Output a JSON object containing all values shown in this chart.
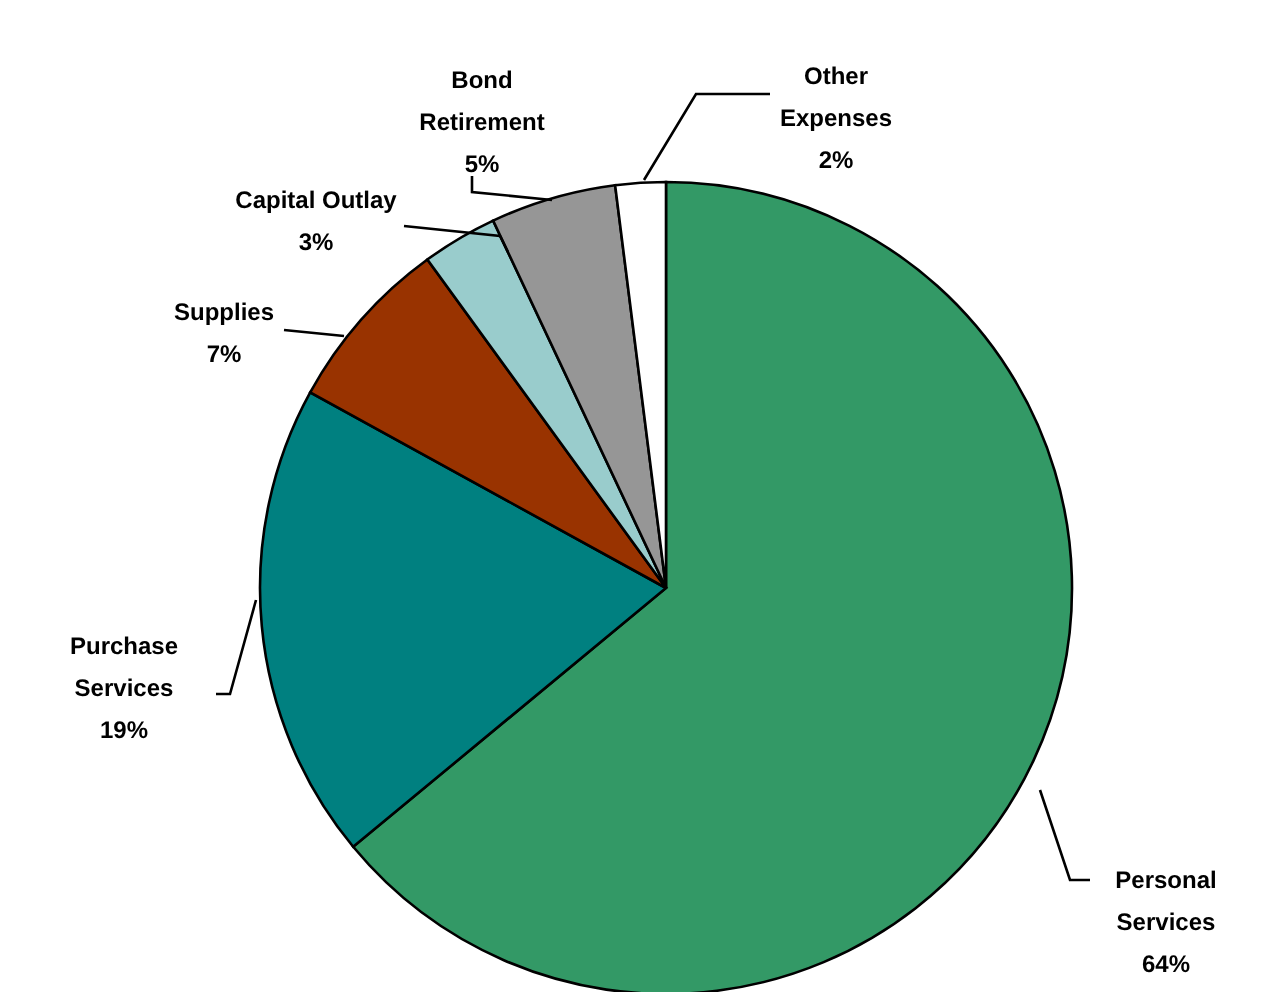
{
  "chart_data": {
    "type": "pie",
    "categories": [
      "Personal Services",
      "Purchase Services",
      "Supplies",
      "Capital Outlay",
      "Bond Retirement",
      "Other Expenses"
    ],
    "values": [
      64,
      19,
      7,
      3,
      5,
      2
    ],
    "value_labels": [
      "64%",
      "19%",
      "7%",
      "3%",
      "5%",
      "2%"
    ],
    "colors": [
      "#339966",
      "#008080",
      "#993300",
      "#99cccc",
      "#969696",
      "#ffffff"
    ]
  }
}
